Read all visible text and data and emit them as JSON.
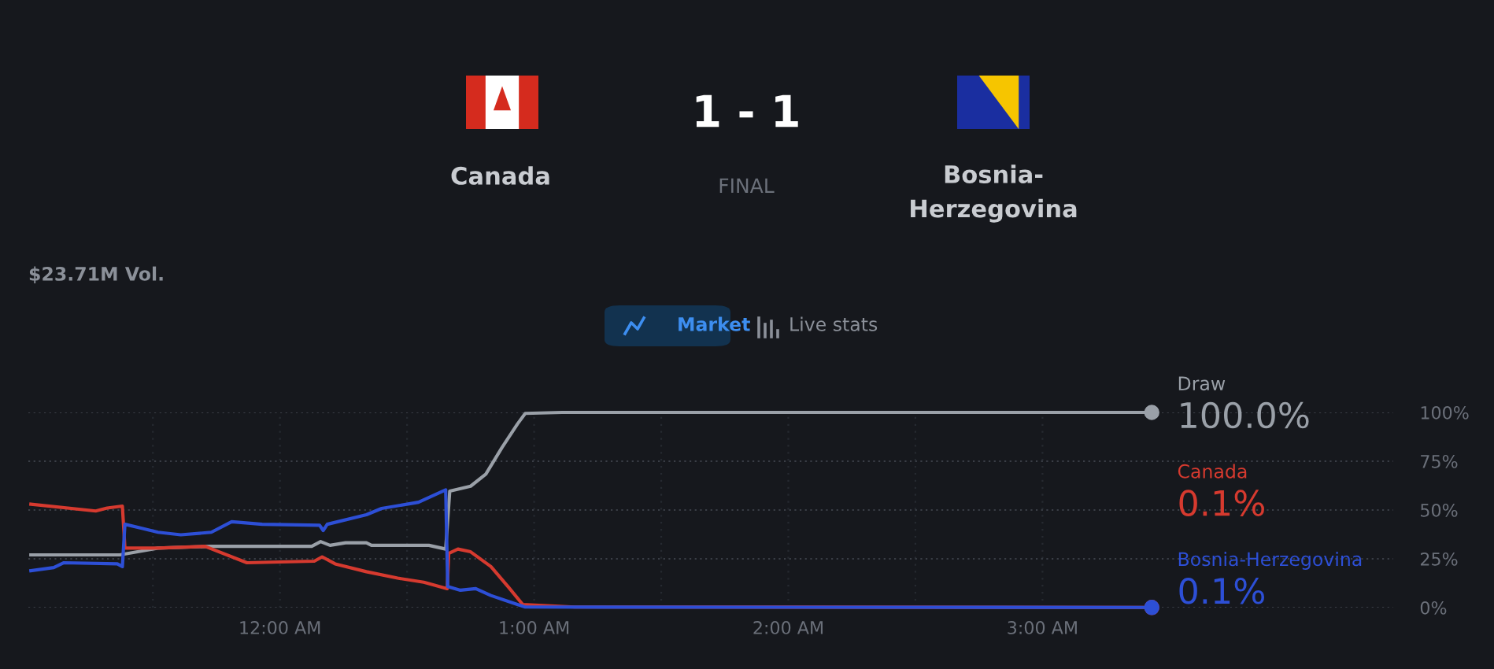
{
  "chart_data": {
    "type": "line",
    "annotations": [
      "Canada",
      "1 - 1",
      "FINAL",
      "Bosnia-\nHerzegovina",
      "$23.71M Vol.",
      "Market",
      "Live stats"
    ],
    "xlim": [
      -0.99,
      4.38
    ],
    "ylim": [
      0,
      100
    ],
    "xticks": [
      {
        "value": -0.5,
        "label": null
      },
      {
        "value": 0,
        "label": "12:00 AM"
      },
      {
        "value": 0.5,
        "label": null
      },
      {
        "value": 1,
        "label": "1:00 AM"
      },
      {
        "value": 1.5,
        "label": null
      },
      {
        "value": 2,
        "label": "2:00 AM"
      },
      {
        "value": 2.5,
        "label": null
      },
      {
        "value": 3,
        "label": "3:00 AM"
      }
    ],
    "yticks": [
      {
        "value": 0,
        "label": "0%"
      },
      {
        "value": 25,
        "label": "25%"
      },
      {
        "value": 50,
        "label": "50%"
      },
      {
        "value": 75,
        "label": "75%"
      },
      {
        "value": 100,
        "label": "100%"
      }
    ],
    "grid": true,
    "legend": false,
    "series": [
      {
        "name": "Draw",
        "color": "#9aa0a8",
        "x": [
          -0.98,
          -0.63,
          -0.56,
          -0.48,
          -0.275,
          0.125,
          0.16,
          0.197,
          0.258,
          0.34,
          0.36,
          0.586,
          0.652,
          0.668,
          0.75,
          0.81,
          0.873,
          0.934,
          0.965,
          1.11,
          3.43
        ],
        "values": [
          27,
          27,
          28.6,
          30.5,
          31.4,
          31.4,
          33.8,
          31.9,
          33.2,
          33.2,
          31.9,
          31.9,
          30,
          59.7,
          62.2,
          68.4,
          81.9,
          94,
          99.5,
          100,
          100.0
        ],
        "value_labels": [
          null,
          null,
          null,
          null,
          null,
          null,
          null,
          null,
          null,
          null,
          null,
          null,
          null,
          null,
          null,
          null,
          null,
          null,
          null,
          null,
          "100.0%"
        ]
      },
      {
        "name": "Canada",
        "color": "#d63a2f",
        "x": [
          -0.98,
          -0.725,
          -0.68,
          -0.62,
          -0.61,
          -0.48,
          -0.295,
          -0.13,
          0.135,
          0.166,
          0.217,
          0.34,
          0.463,
          0.566,
          0.658,
          0.664,
          0.7,
          0.75,
          0.83,
          0.9,
          0.955,
          1.16,
          3.43
        ],
        "values": [
          53,
          49.5,
          51,
          52,
          30.5,
          30.5,
          31.4,
          23,
          23.8,
          26,
          22.4,
          18.4,
          15.1,
          13,
          9.7,
          27.8,
          30,
          28.6,
          21,
          10.3,
          1.6,
          0.3,
          0.1
        ],
        "value_labels": [
          null,
          null,
          null,
          null,
          null,
          null,
          null,
          null,
          null,
          null,
          null,
          null,
          null,
          null,
          null,
          null,
          null,
          null,
          null,
          null,
          null,
          null,
          "0.1%"
        ]
      },
      {
        "name": "Bosnia-Herzegovina",
        "color": "#2d4fd6",
        "x": [
          -0.98,
          -0.89,
          -0.85,
          -0.64,
          -0.62,
          -0.61,
          -0.54,
          -0.48,
          -0.39,
          -0.27,
          -0.19,
          -0.07,
          0.156,
          0.17,
          0.186,
          0.34,
          0.4,
          0.545,
          0.652,
          0.66,
          0.71,
          0.77,
          0.83,
          0.934,
          0.965,
          3.43
        ],
        "values": [
          18.9,
          20.5,
          23,
          22.4,
          21,
          42.7,
          40.5,
          38.6,
          37.3,
          38.6,
          44,
          42.7,
          42.2,
          39.5,
          42.7,
          47.6,
          50.8,
          54,
          60.3,
          10.8,
          8.9,
          9.7,
          6.2,
          1.6,
          0.3,
          0.1
        ],
        "value_labels": [
          null,
          null,
          null,
          null,
          null,
          null,
          null,
          null,
          null,
          null,
          null,
          null,
          null,
          null,
          null,
          null,
          null,
          null,
          null,
          null,
          null,
          null,
          null,
          null,
          null,
          "0.1%"
        ]
      }
    ]
  }
}
